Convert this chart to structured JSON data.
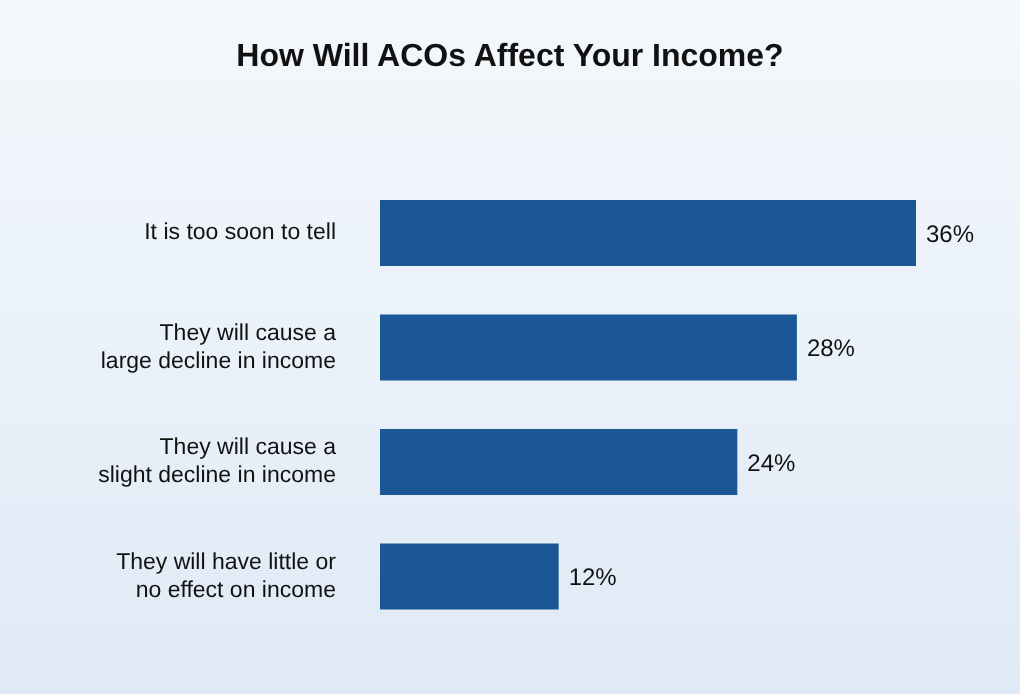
{
  "chart_data": {
    "type": "bar",
    "orientation": "horizontal",
    "title": "How Will ACOs Affect Your Income?",
    "categories": [
      "It is too soon to tell",
      "They will cause a\nlarge decline in income",
      "They will cause a\nslight decline in income",
      "They will have little or\nno effect on income"
    ],
    "values": [
      36,
      28,
      24,
      12
    ],
    "value_labels": [
      "36%",
      "28%",
      "24%",
      "12%"
    ],
    "color": "#1b5796"
  }
}
